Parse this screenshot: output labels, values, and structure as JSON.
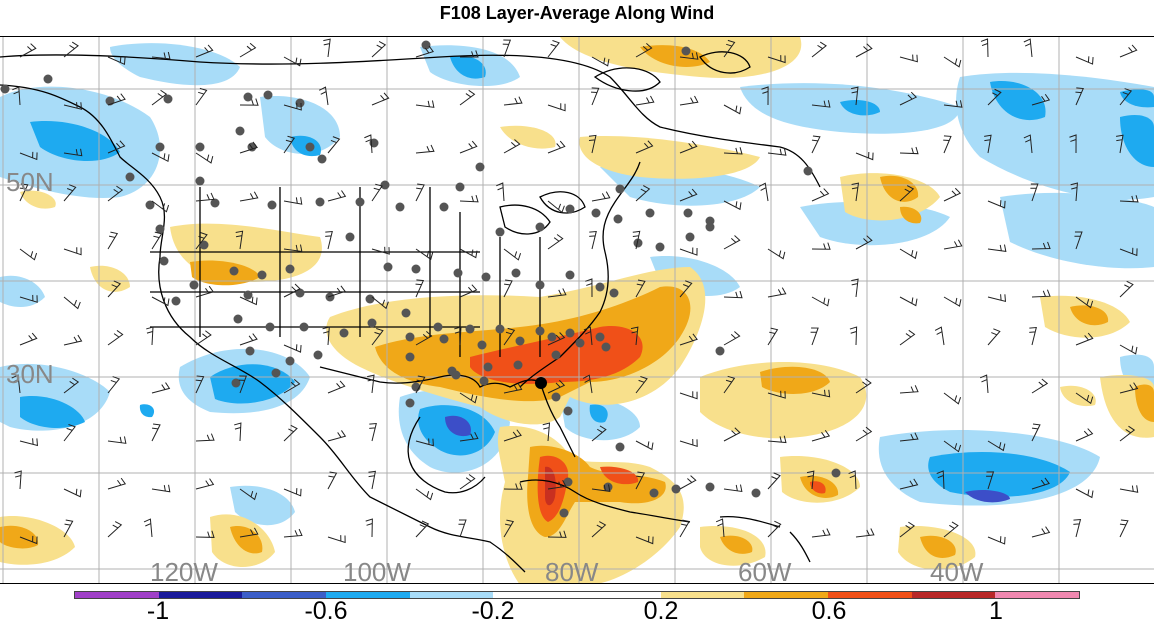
{
  "title": "F108 Layer-Average Along Wind",
  "latitude_labels": [
    "50N",
    "30N"
  ],
  "longitude_labels": [
    "120W",
    "100W",
    "80W",
    "60W",
    "40W"
  ],
  "colorbar": {
    "colors": [
      "#a040c8",
      "#1a1a9a",
      "#3c5ec8",
      "#1eaaf0",
      "#a8dcf8",
      "#ffffff",
      "#ffffff",
      "#f8e08c",
      "#f0a818",
      "#f05018",
      "#b82828",
      "#f088b0"
    ],
    "labels": [
      "-1",
      "-0.6",
      "-0.2",
      "0.2",
      "0.6",
      "1"
    ]
  },
  "legend_colors": {
    "deep_blue": "#3c4ec8",
    "blue": "#1eaaf0",
    "light_blue": "#a8dcf8",
    "yellow": "#f8e08c",
    "orange": "#f0a818",
    "red_orange": "#f05018",
    "dark_red": "#c83020"
  }
}
